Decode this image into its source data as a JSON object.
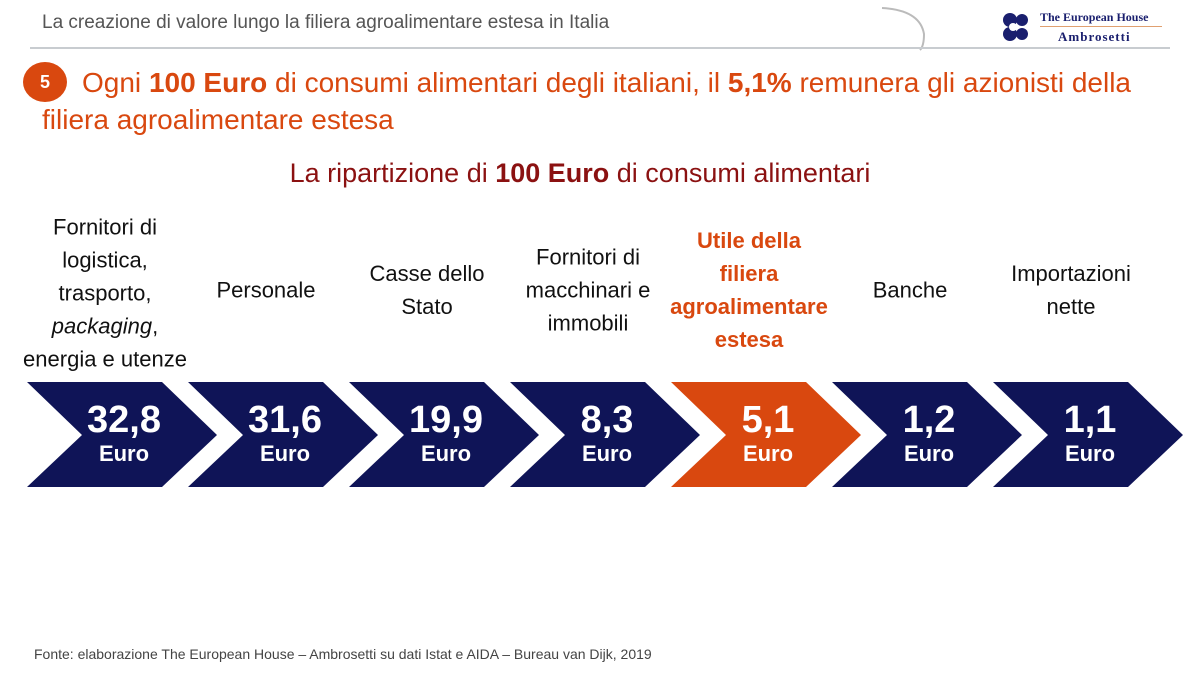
{
  "header": {
    "title": "La creazione di valore lungo la filiera agroalimentare estesa in Italia"
  },
  "logo": {
    "line1": "The European House",
    "line2": "Ambrosetti"
  },
  "slide": {
    "number": "5",
    "title_parts": [
      "Ogni ",
      "100 Euro",
      " di consumi alimentari degli italiani, il ",
      "5,1%",
      " remunera gli azionisti della filiera agroalimentare estesa"
    ],
    "subtitle_parts": [
      "La ripartizione di ",
      "100 Euro",
      " di consumi alimentari"
    ]
  },
  "items": [
    {
      "label": [
        "Fornitori di",
        "logistica,",
        "trasporto,",
        "packaging,",
        "energia e utenze"
      ],
      "value": "32,8",
      "unit": "Euro",
      "highlight": false
    },
    {
      "label": [
        "Personale"
      ],
      "value": "31,6",
      "unit": "Euro",
      "highlight": false
    },
    {
      "label": [
        "Casse dello",
        "Stato"
      ],
      "value": "19,9",
      "unit": "Euro",
      "highlight": false
    },
    {
      "label": [
        "Fornitori di",
        "macchinari e",
        "immobili"
      ],
      "value": "8,3",
      "unit": "Euro",
      "highlight": false
    },
    {
      "label": [
        "Utile della",
        "filiera",
        "agroalimentare",
        "estesa"
      ],
      "value": "5,1",
      "unit": "Euro",
      "highlight": true
    },
    {
      "label": [
        "Banche"
      ],
      "value": "1,2",
      "unit": "Euro",
      "highlight": false
    },
    {
      "label": [
        "Importazioni",
        "nette"
      ],
      "value": "1,1",
      "unit": "Euro",
      "highlight": false
    }
  ],
  "colors": {
    "navy": "#0f1457",
    "orange": "#d9480f"
  },
  "source": "Fonte: elaborazione The European House – Ambrosetti su dati Istat e AIDA – Bureau van Dijk, 2019"
}
